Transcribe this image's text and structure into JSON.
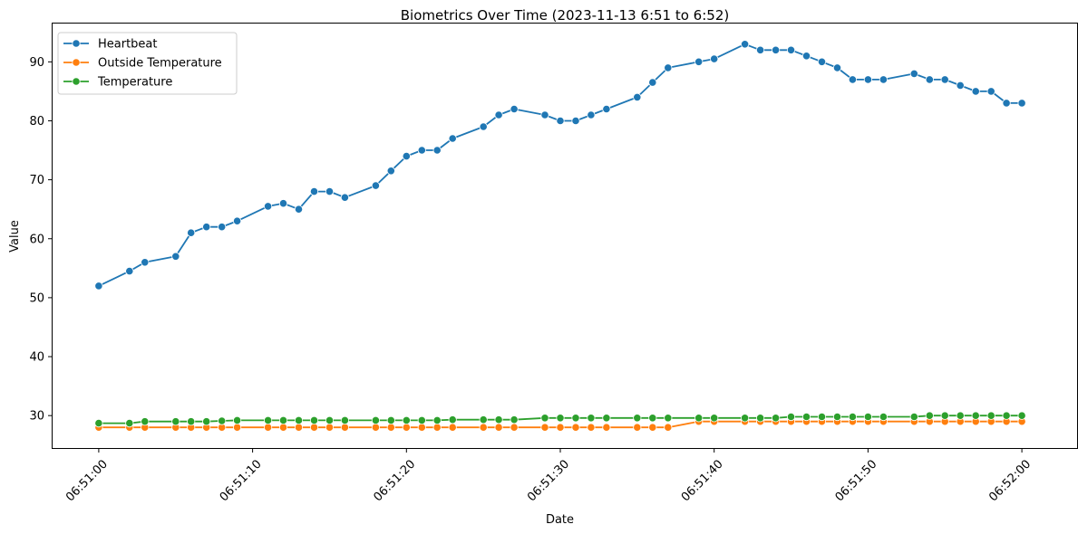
{
  "chart_data": {
    "type": "line",
    "title": "Biometrics Over Time (2023-11-13 6:51 to 6:52)",
    "xlabel": "Date",
    "ylabel": "Value",
    "xlim_seconds": [
      -3,
      63
    ],
    "ylim": [
      24.5,
      96.5
    ],
    "x_ticks": [
      {
        "s": 0,
        "label": "06:51:00"
      },
      {
        "s": 10,
        "label": "06:51:10"
      },
      {
        "s": 20,
        "label": "06:51:20"
      },
      {
        "s": 30,
        "label": "06:51:30"
      },
      {
        "s": 40,
        "label": "06:51:40"
      },
      {
        "s": 50,
        "label": "06:51:50"
      },
      {
        "s": 60,
        "label": "06:52:00"
      }
    ],
    "y_ticks": [
      30,
      40,
      50,
      60,
      70,
      80,
      90
    ],
    "legend_position": "top-left",
    "grid": false,
    "series": [
      {
        "name": "Heartbeat",
        "color": "#1f77b4",
        "x": [
          0,
          2,
          3,
          5,
          6,
          7,
          8,
          9,
          11,
          12,
          13,
          14,
          15,
          16,
          18,
          19,
          20,
          21,
          22,
          23,
          25,
          26,
          27,
          29,
          30,
          31,
          32,
          33,
          35,
          36,
          37,
          39,
          40,
          42,
          43,
          44,
          45,
          46,
          47,
          48,
          49,
          50,
          51,
          53,
          54,
          55,
          56,
          57,
          58,
          59,
          60
        ],
        "y": [
          52,
          54.5,
          56,
          57,
          61,
          62,
          62,
          63,
          65.5,
          66,
          65,
          68,
          68,
          67,
          69,
          71.5,
          74,
          75,
          75,
          77,
          79,
          81,
          82,
          81,
          80,
          80,
          81,
          82,
          84,
          86.5,
          89,
          90,
          90.5,
          93,
          92,
          92,
          92,
          91,
          90,
          89,
          87,
          87,
          87,
          88,
          87,
          87,
          86,
          85,
          85,
          83,
          83
        ]
      },
      {
        "name": "Outside Temperature",
        "color": "#ff7f0e",
        "x": [
          0,
          2,
          3,
          5,
          6,
          7,
          8,
          9,
          11,
          12,
          13,
          14,
          15,
          16,
          18,
          19,
          20,
          21,
          22,
          23,
          25,
          26,
          27,
          29,
          30,
          31,
          32,
          33,
          35,
          36,
          37,
          39,
          40,
          42,
          43,
          44,
          45,
          46,
          47,
          48,
          49,
          50,
          51,
          53,
          54,
          55,
          56,
          57,
          58,
          59,
          60
        ],
        "y": [
          28,
          28,
          28,
          28,
          28,
          28,
          28,
          28,
          28,
          28,
          28,
          28,
          28,
          28,
          28,
          28,
          28,
          28,
          28,
          28,
          28,
          28,
          28,
          28,
          28,
          28,
          28,
          28,
          28,
          28,
          28,
          29,
          29,
          29,
          29,
          29,
          29,
          29,
          29,
          29,
          29,
          29,
          29,
          29,
          29,
          29,
          29,
          29,
          29,
          29,
          29
        ]
      },
      {
        "name": "Temperature",
        "color": "#2ca02c",
        "x": [
          0,
          2,
          3,
          5,
          6,
          7,
          8,
          9,
          11,
          12,
          13,
          14,
          15,
          16,
          18,
          19,
          20,
          21,
          22,
          23,
          25,
          26,
          27,
          29,
          30,
          31,
          32,
          33,
          35,
          36,
          37,
          39,
          40,
          42,
          43,
          44,
          45,
          46,
          47,
          48,
          49,
          50,
          51,
          53,
          54,
          55,
          56,
          57,
          58,
          59,
          60
        ],
        "y": [
          28.7,
          28.7,
          29,
          29,
          29,
          29,
          29.1,
          29.2,
          29.2,
          29.2,
          29.2,
          29.2,
          29.2,
          29.2,
          29.2,
          29.2,
          29.2,
          29.2,
          29.2,
          29.3,
          29.3,
          29.3,
          29.3,
          29.6,
          29.6,
          29.6,
          29.6,
          29.6,
          29.6,
          29.6,
          29.6,
          29.6,
          29.6,
          29.6,
          29.6,
          29.6,
          29.8,
          29.8,
          29.8,
          29.8,
          29.8,
          29.8,
          29.8,
          29.8,
          30,
          30,
          30,
          30,
          30,
          30,
          30
        ]
      }
    ]
  }
}
